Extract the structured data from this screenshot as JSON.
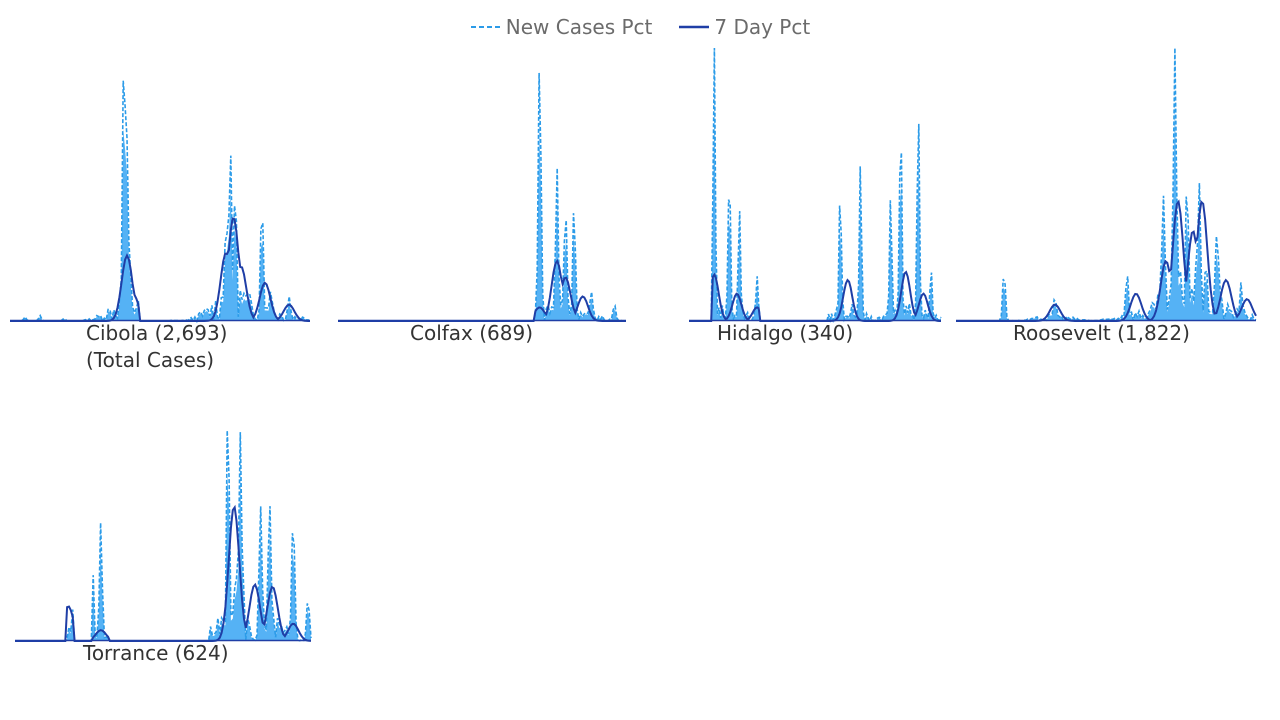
{
  "legend": {
    "new_cases_label": "New Cases Pct",
    "seven_day_label": "7 Day Pct"
  },
  "colors": {
    "new_cases": "#2b9be8",
    "seven_day": "#1f3ea6",
    "fill": "#55b2f5",
    "label": "#333333",
    "legend_text": "#6b6b6b"
  },
  "chart_data": [
    {
      "type": "area",
      "panel": "cibola",
      "title": "Cibola (2,693)",
      "subtitle": "(Total Cases)",
      "series_names": [
        "New Cases Pct",
        "7 Day Pct"
      ],
      "peaks_new": [
        [
          0.05,
          0.015
        ],
        [
          0.1,
          0.02
        ],
        [
          0.18,
          0.01
        ],
        [
          0.38,
          1.0
        ],
        [
          0.39,
          0.6
        ],
        [
          0.4,
          0.15
        ],
        [
          0.72,
          0.35
        ],
        [
          0.735,
          0.52
        ],
        [
          0.75,
          0.4
        ],
        [
          0.84,
          0.43
        ],
        [
          0.87,
          0.1
        ],
        [
          0.93,
          0.08
        ]
      ],
      "peaks_avg": [
        [
          0.39,
          0.24
        ],
        [
          0.41,
          0.1
        ],
        [
          0.72,
          0.25
        ],
        [
          0.745,
          0.38
        ],
        [
          0.77,
          0.2
        ],
        [
          0.85,
          0.14
        ],
        [
          0.93,
          0.06
        ]
      ],
      "active": [
        [
          0.0,
          0.43
        ],
        [
          0.53,
          1.0
        ]
      ]
    },
    {
      "type": "area",
      "panel": "colfax",
      "title": "Colfax (689)",
      "subtitle": "",
      "series_names": [
        "New Cases Pct",
        "7 Day Pct"
      ],
      "peaks_new": [
        [
          0.55,
          0.02
        ],
        [
          0.7,
          1.0
        ],
        [
          0.76,
          0.5
        ],
        [
          0.79,
          0.4
        ],
        [
          0.82,
          0.4
        ],
        [
          0.88,
          0.08
        ],
        [
          0.96,
          0.06
        ]
      ],
      "peaks_avg": [
        [
          0.7,
          0.05
        ],
        [
          0.76,
          0.22
        ],
        [
          0.79,
          0.16
        ],
        [
          0.85,
          0.09
        ]
      ],
      "active": [
        [
          0.68,
          1.0
        ]
      ]
    },
    {
      "type": "area",
      "panel": "hidalgo",
      "title": "Hidalgo (340)",
      "subtitle": "",
      "series_names": [
        "New Cases Pct",
        "7 Day Pct"
      ],
      "peaks_new": [
        [
          0.0,
          0.05
        ],
        [
          0.1,
          1.0
        ],
        [
          0.16,
          0.55
        ],
        [
          0.2,
          0.4
        ],
        [
          0.27,
          0.16
        ],
        [
          0.37,
          0.22
        ],
        [
          0.6,
          0.46
        ],
        [
          0.68,
          0.53
        ],
        [
          0.8,
          0.43
        ],
        [
          0.84,
          0.75
        ],
        [
          0.91,
          0.78
        ],
        [
          0.96,
          0.17
        ]
      ],
      "peaks_avg": [
        [
          0.0,
          0.06
        ],
        [
          0.1,
          0.17
        ],
        [
          0.19,
          0.1
        ],
        [
          0.27,
          0.05
        ],
        [
          0.63,
          0.15
        ],
        [
          0.86,
          0.18
        ],
        [
          0.93,
          0.1
        ]
      ],
      "active": [
        [
          0.09,
          0.28
        ],
        [
          0.55,
          1.0
        ]
      ]
    },
    {
      "type": "area",
      "panel": "roosevelt",
      "title": "Roosevelt (1,822)",
      "subtitle": "",
      "series_names": [
        "New Cases Pct",
        "7 Day Pct"
      ],
      "peaks_new": [
        [
          0.16,
          0.19
        ],
        [
          0.33,
          0.08
        ],
        [
          0.57,
          0.17
        ],
        [
          0.69,
          0.4
        ],
        [
          0.73,
          1.0
        ],
        [
          0.77,
          0.46
        ],
        [
          0.81,
          0.5
        ],
        [
          0.87,
          0.3
        ],
        [
          0.95,
          0.1
        ]
      ],
      "peaks_avg": [
        [
          0.33,
          0.06
        ],
        [
          0.6,
          0.1
        ],
        [
          0.7,
          0.22
        ],
        [
          0.74,
          0.44
        ],
        [
          0.79,
          0.33
        ],
        [
          0.82,
          0.44
        ],
        [
          0.9,
          0.15
        ],
        [
          0.97,
          0.08
        ]
      ],
      "active": [
        [
          0.05,
          1.0
        ]
      ]
    },
    {
      "type": "area",
      "panel": "torrance",
      "title": "Torrance (624)",
      "subtitle": "",
      "series_names": [
        "New Cases Pct",
        "7 Day Pct"
      ],
      "peaks_new": [
        [
          0.01,
          0.1
        ],
        [
          0.2,
          0.16
        ],
        [
          0.26,
          0.48
        ],
        [
          0.29,
          0.55
        ],
        [
          0.36,
          0.16
        ],
        [
          0.55,
          0.2
        ],
        [
          0.72,
          1.0
        ],
        [
          0.76,
          0.88
        ],
        [
          0.83,
          0.6
        ],
        [
          0.86,
          0.6
        ],
        [
          0.94,
          0.57
        ],
        [
          0.99,
          0.2
        ]
      ],
      "peaks_avg": [
        [
          0.18,
          0.16
        ],
        [
          0.29,
          0.05
        ],
        [
          0.74,
          0.62
        ],
        [
          0.81,
          0.26
        ],
        [
          0.87,
          0.25
        ],
        [
          0.94,
          0.08
        ]
      ],
      "active": [
        [
          0.17,
          0.2
        ],
        [
          0.26,
          0.32
        ],
        [
          0.66,
          1.0
        ]
      ]
    }
  ]
}
